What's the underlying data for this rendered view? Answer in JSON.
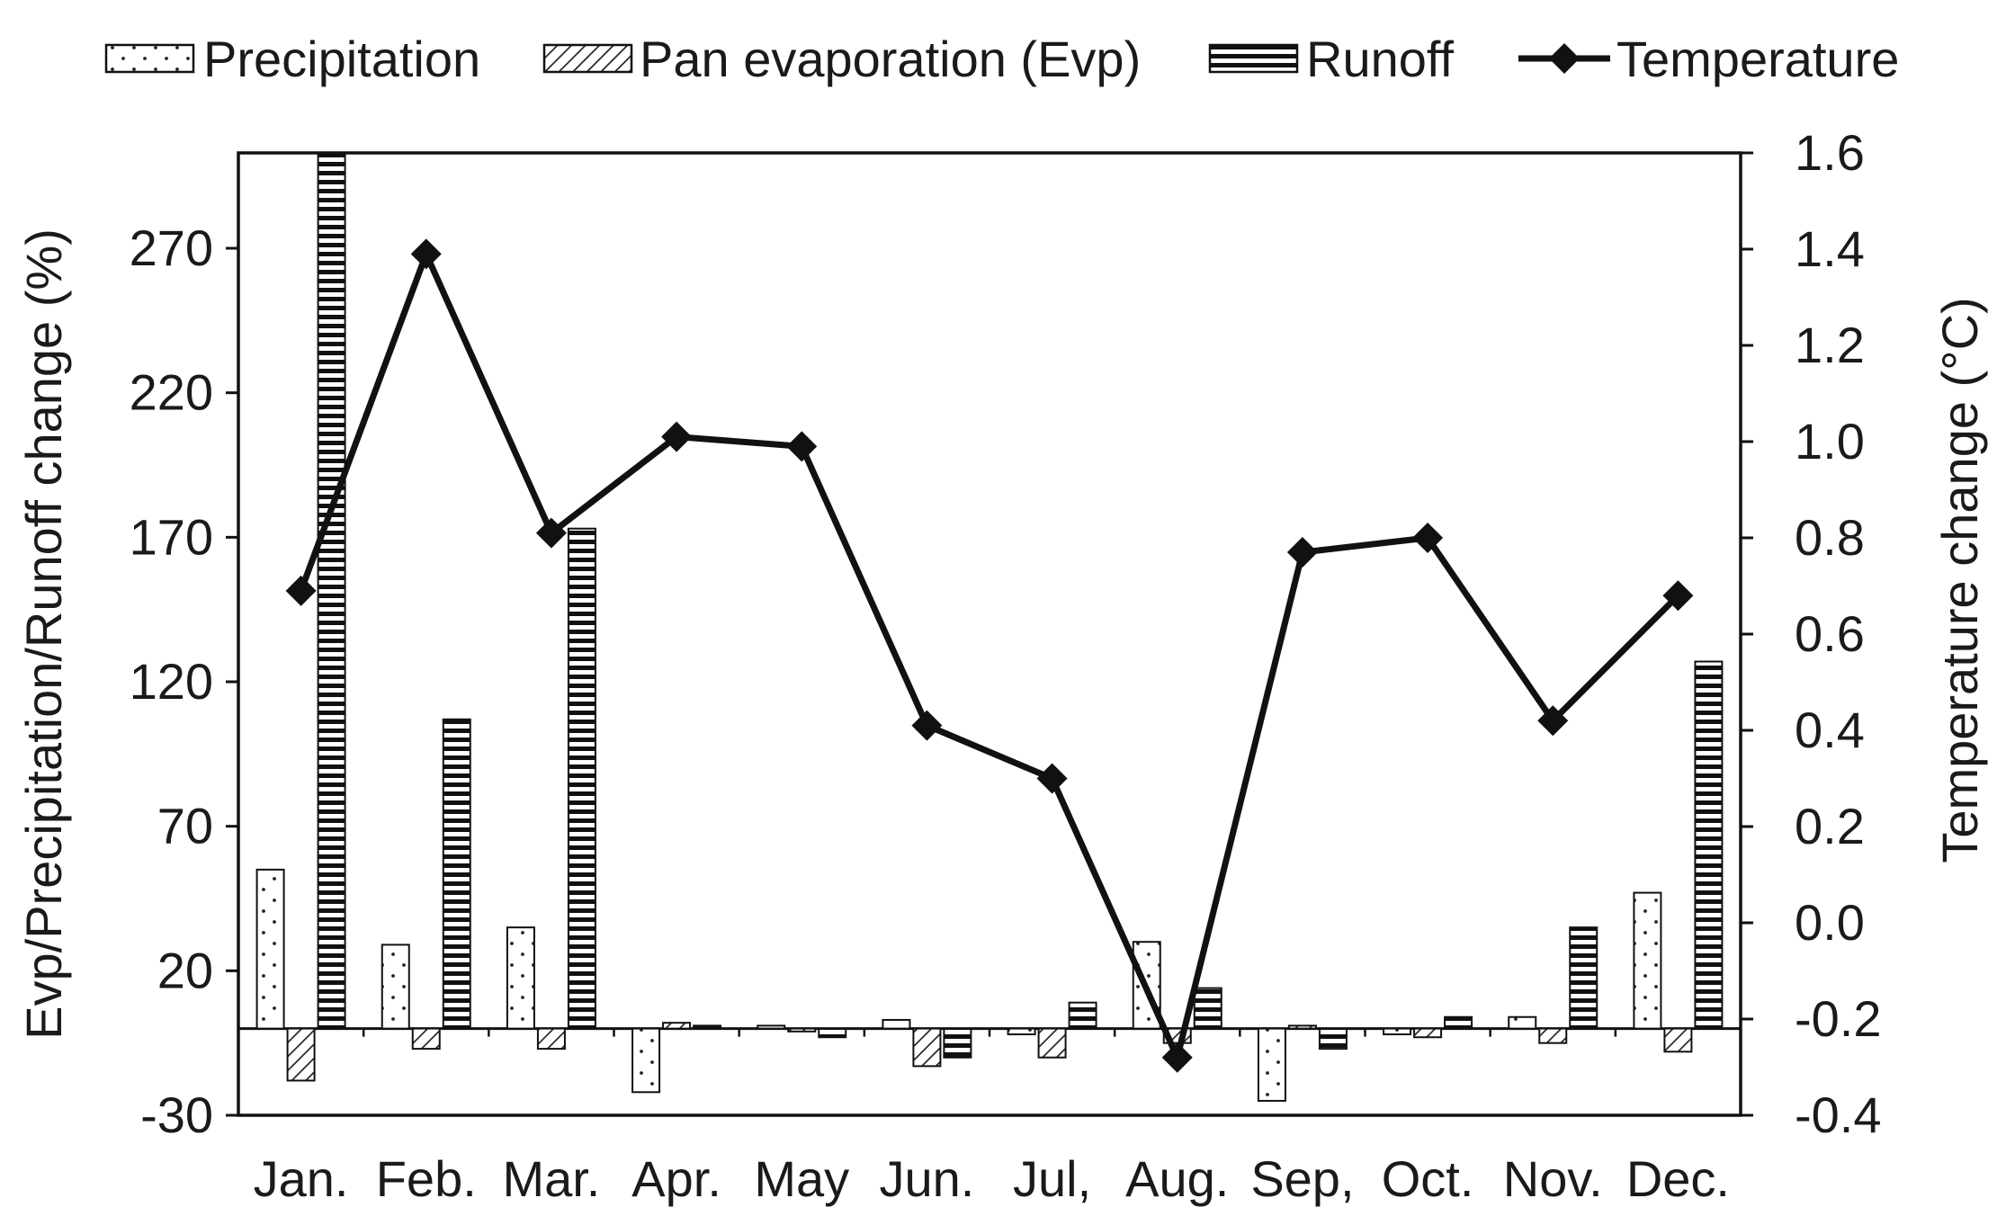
{
  "chart_data": {
    "type": "bar+line",
    "categories": [
      "Jan.",
      "Feb.",
      "Mar.",
      "Apr.",
      "May",
      "Jun.",
      "Jul,",
      "Aug.",
      "Sep,",
      "Oct.",
      "Nov.",
      "Dec."
    ],
    "series": [
      {
        "name": "Precipitation",
        "type": "bar",
        "axis": "left",
        "pattern": "dots",
        "values": [
          55,
          29,
          35,
          -22,
          1,
          3,
          -2,
          30,
          -25,
          -2,
          4,
          47
        ]
      },
      {
        "name": "Pan evaporation (Evp)",
        "type": "bar",
        "axis": "left",
        "pattern": "diagonal",
        "values": [
          -18,
          -7,
          -7,
          2,
          -1,
          -13,
          -10,
          -5,
          1,
          -3,
          -5,
          -8
        ]
      },
      {
        "name": "Runoff",
        "type": "bar",
        "axis": "left",
        "pattern": "horizontal",
        "values": [
          303,
          107,
          173,
          1,
          -3,
          -10,
          9,
          14,
          -7,
          4,
          35,
          127
        ]
      },
      {
        "name": "Temperature",
        "type": "line",
        "axis": "right",
        "marker": "diamond",
        "values": [
          0.69,
          1.39,
          0.81,
          1.01,
          0.99,
          0.41,
          0.3,
          -0.28,
          0.77,
          0.8,
          0.42,
          0.68
        ]
      }
    ],
    "ylabel": "Evp/Precipitation/Runoff change (%)",
    "y2label": "Temperature change (°C)",
    "ylim": [
      -30,
      303
    ],
    "y2lim": [
      -0.4,
      1.6
    ],
    "yticks": [
      "270",
      "220",
      "170",
      "120",
      "70",
      "20",
      "-30"
    ],
    "yticks_values": [
      270,
      220,
      170,
      120,
      70,
      20,
      -30
    ],
    "y2ticks": [
      "1.6",
      "1.4",
      "1.2",
      "1.0",
      "0.8",
      "0.6",
      "0.4",
      "0.2",
      "0.0",
      "-0.2",
      "-0.4"
    ],
    "y2ticks_values": [
      1.6,
      1.4,
      1.2,
      1.0,
      0.8,
      0.6,
      0.4,
      0.2,
      0.0,
      -0.2,
      -0.4
    ],
    "legend_position": "top",
    "grid": false
  }
}
